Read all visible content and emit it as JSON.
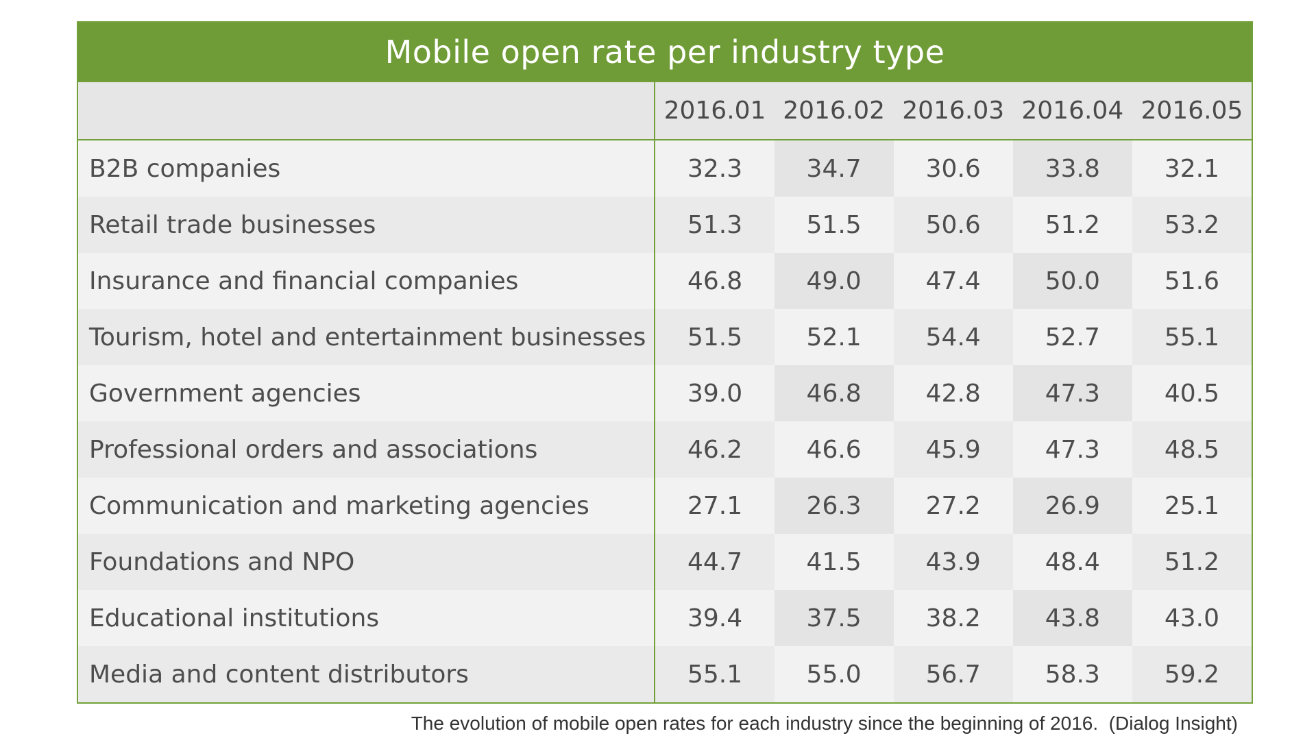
{
  "chart_data": {
    "type": "table",
    "title": "Mobile open rate per industry type",
    "columns": [
      "2016.01",
      "2016.02",
      "2016.03",
      "2016.04",
      "2016.05"
    ],
    "rows": [
      {
        "label": "B2B companies",
        "values": [
          "32.3",
          "34.7",
          "30.6",
          "33.8",
          "32.1"
        ]
      },
      {
        "label": "Retail trade businesses",
        "values": [
          "51.3",
          "51.5",
          "50.6",
          "51.2",
          "53.2"
        ]
      },
      {
        "label": "Insurance and financial companies",
        "values": [
          "46.8",
          "49.0",
          "47.4",
          "50.0",
          "51.6"
        ]
      },
      {
        "label": "Tourism, hotel and entertainment businesses",
        "values": [
          "51.5",
          "52.1",
          "54.4",
          "52.7",
          "55.1"
        ]
      },
      {
        "label": "Government agencies",
        "values": [
          "39.0",
          "46.8",
          "42.8",
          "47.3",
          "40.5"
        ]
      },
      {
        "label": "Professional orders and associations",
        "values": [
          "46.2",
          "46.6",
          "45.9",
          "47.3",
          "48.5"
        ]
      },
      {
        "label": "Communication and marketing agencies",
        "values": [
          "27.1",
          "26.3",
          "27.2",
          "26.9",
          "25.1"
        ]
      },
      {
        "label": "Foundations and NPO",
        "values": [
          "44.7",
          "41.5",
          "43.9",
          "48.4",
          "51.2"
        ]
      },
      {
        "label": "Educational institutions",
        "values": [
          "39.4",
          "37.5",
          "38.2",
          "43.8",
          "43.0"
        ]
      },
      {
        "label": "Media and content distributors",
        "values": [
          "55.1",
          "55.0",
          "56.7",
          "58.3",
          "59.2"
        ]
      }
    ],
    "caption": "The evolution of mobile open rates for each industry since the beginning of 2016.  (Dialog Insight)",
    "colors": {
      "header_green": "#6f9c36",
      "border_green": "#72a13a",
      "header_row_gray": "#e6e6e6",
      "cell_light": "#f2f2f2",
      "cell_dark": "#e4e4e4"
    }
  }
}
